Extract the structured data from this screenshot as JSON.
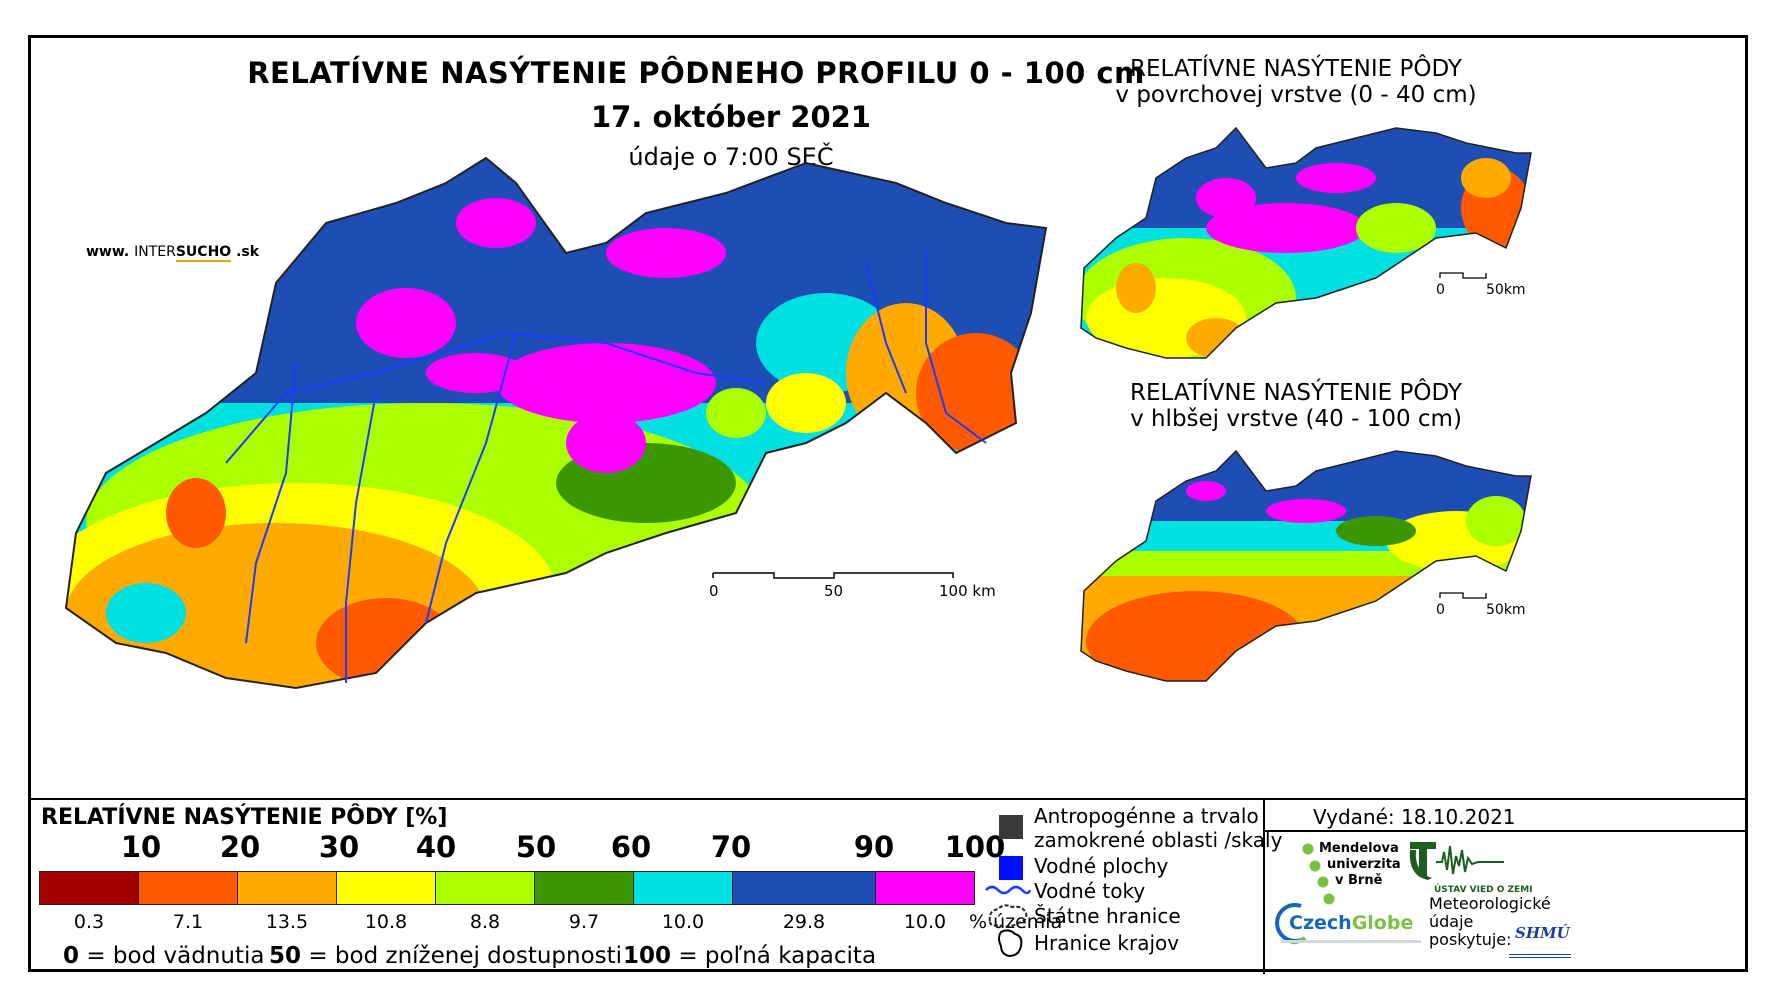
{
  "header": {
    "title": "RELATÍVNE NASÝTENIE PÔDNEHO PROFILU 0 - 100 cm",
    "date": "17. október 2021",
    "time_note": "údaje o 7:00 SEČ",
    "site_prefix": "www.",
    "site_brand_a": "INTER",
    "site_brand_b": "SUCHO",
    "site_suffix": ".sk"
  },
  "side_maps": [
    {
      "title_line1": "RELATÍVNE NASÝTENIE PÔDY",
      "title_line2": "v povrchovej vrstve (0 - 40 cm)",
      "scale_zero": "0",
      "scale_end": "50km"
    },
    {
      "title_line1": "RELATÍVNE NASÝTENIE PÔDY",
      "title_line2": "v hlbšej vrstve (40 - 100 cm)",
      "scale_zero": "0",
      "scale_end": "50km"
    }
  ],
  "main_scale": {
    "zero": "0",
    "mid": "50",
    "end": "100 km"
  },
  "legend": {
    "title": "RELATÍVNE NASÝTENIE PÔDY [%]",
    "ticks": [
      "10",
      "20",
      "30",
      "40",
      "50",
      "60",
      "70",
      "90",
      "100"
    ],
    "classes": [
      {
        "color": "#a50000",
        "share": "0.3"
      },
      {
        "color": "#ff5a00",
        "share": "7.1"
      },
      {
        "color": "#ffaa00",
        "share": "13.5"
      },
      {
        "color": "#ffff00",
        "share": "10.8"
      },
      {
        "color": "#aaff00",
        "share": "8.8"
      },
      {
        "color": "#3c9600",
        "share": "9.7"
      },
      {
        "color": "#00e0e0",
        "share": "10.0"
      },
      {
        "color": "#1e4eb4",
        "share": "29.8"
      },
      {
        "color": "#ff00ff",
        "share": "10.0"
      }
    ],
    "share_unit": "% územia",
    "note_0_num": "0",
    "note_0_text": "= bod vädnutia",
    "note_50_num": "50",
    "note_50_text": "= bod zníženej dostupnosti",
    "note_100_num": "100",
    "note_100_text": "= poľná kapacita"
  },
  "map_key": {
    "anthro_line1": "Antropogénne a trvalo",
    "anthro_line2": "zamokrené oblasti /skaly",
    "water_bodies": "Vodné plochy",
    "rivers": "Vodné toky",
    "border": "Štátne hranice",
    "regions": "Hranice krajov",
    "colors": {
      "anthro": "#3a3a3a",
      "water": "#0010ff",
      "river": "#1a3cff"
    }
  },
  "publisher": {
    "issued": "Vydané: 18.10.2021",
    "mendelu_l1": "Mendelova",
    "mendelu_l2": "univerzita",
    "mendelu_l3": "v Brně",
    "ustav": "ÚSTAV VIED O ZEMI",
    "czechglobe_a": "Czech",
    "czechglobe_b": "Globe",
    "meteo_l1": "Meteorologické",
    "meteo_l2": "údaje",
    "meteo_l3": "poskytuje:",
    "shmu": "SHMÚ"
  }
}
